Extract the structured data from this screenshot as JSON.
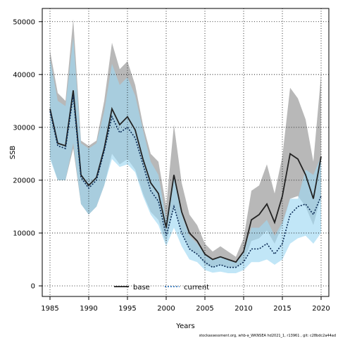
{
  "chart_data": {
    "type": "line",
    "xlabel": "Years",
    "ylabel": "SSB",
    "xlim": [
      1984,
      2021
    ],
    "ylim": [
      -2000,
      52500
    ],
    "x_ticks": [
      1985,
      1990,
      1995,
      2000,
      2005,
      2010,
      2015,
      2020
    ],
    "y_ticks": [
      0,
      10000,
      20000,
      30000,
      40000,
      50000
    ],
    "grid": true,
    "legend_position": "bottom-center",
    "years": [
      1985,
      1986,
      1987,
      1988,
      1989,
      1990,
      1991,
      1992,
      1993,
      1994,
      1995,
      1996,
      1997,
      1998,
      1999,
      2000,
      2001,
      2002,
      2003,
      2004,
      2005,
      2006,
      2007,
      2008,
      2009,
      2010,
      2011,
      2012,
      2013,
      2014,
      2015,
      2016,
      2017,
      2018,
      2019,
      2020
    ],
    "series": [
      {
        "name": "base",
        "color": "#000000",
        "band_color": "#a0a0a0",
        "values": [
          33500,
          27000,
          26500,
          37000,
          21000,
          19000,
          20500,
          26000,
          33500,
          30500,
          32000,
          29500,
          24000,
          19500,
          17500,
          11000,
          21000,
          14000,
          10000,
          8500,
          6000,
          5000,
          5500,
          5000,
          4500,
          6500,
          12500,
          13500,
          15500,
          12000,
          17000,
          25000,
          24000,
          21000,
          16500,
          24500
        ],
        "lower": [
          24500,
          20000,
          20000,
          26000,
          15500,
          13500,
          15000,
          19000,
          25000,
          23000,
          24000,
          22000,
          17500,
          14000,
          12500,
          8000,
          15000,
          10000,
          7000,
          6000,
          4000,
          3500,
          4000,
          3500,
          3500,
          4500,
          8500,
          9000,
          10500,
          8000,
          11500,
          16500,
          17000,
          15000,
          11500,
          17000
        ],
        "upper": [
          44500,
          36500,
          35000,
          50500,
          27500,
          26500,
          27500,
          35000,
          46000,
          41000,
          42500,
          38000,
          30500,
          25000,
          23500,
          15000,
          30500,
          19500,
          13500,
          11500,
          8000,
          6500,
          7500,
          6500,
          5500,
          9000,
          18000,
          19000,
          23000,
          17500,
          24500,
          37500,
          35500,
          31500,
          23500,
          40000
        ]
      },
      {
        "name": "current",
        "color": "#1f6fbf",
        "band_color": "#9fd8f2",
        "values": [
          33000,
          26500,
          26000,
          36000,
          20500,
          18500,
          20000,
          25500,
          32000,
          29000,
          30000,
          28000,
          23000,
          18000,
          16000,
          9500,
          15000,
          10000,
          7000,
          6000,
          4500,
          3500,
          4000,
          3500,
          3500,
          4500,
          7000,
          7000,
          8000,
          6000,
          8000,
          13500,
          15000,
          15500,
          13500,
          17000
        ],
        "lower": [
          24000,
          20000,
          20000,
          27000,
          15500,
          13500,
          15000,
          19000,
          24000,
          22500,
          23000,
          21500,
          17000,
          13500,
          11500,
          7500,
          11000,
          7500,
          5000,
          4500,
          3000,
          2500,
          2700,
          2400,
          2400,
          3000,
          4500,
          4500,
          5000,
          4000,
          5000,
          8000,
          9000,
          9500,
          8000,
          10000
        ],
        "upper": [
          43000,
          35000,
          34000,
          47000,
          27000,
          26000,
          27000,
          33000,
          42000,
          38000,
          39500,
          36000,
          29500,
          23500,
          21000,
          12500,
          20500,
          13500,
          9500,
          8000,
          6000,
          5000,
          5500,
          5000,
          4500,
          6500,
          11000,
          11000,
          12500,
          9500,
          12000,
          16500,
          16500,
          22000,
          21000,
          24500
        ]
      }
    ]
  },
  "footer": "stockassessment.org, whb-a_WKNSEA hd2021_1, r13961 , git: c28bdc2a44ad"
}
